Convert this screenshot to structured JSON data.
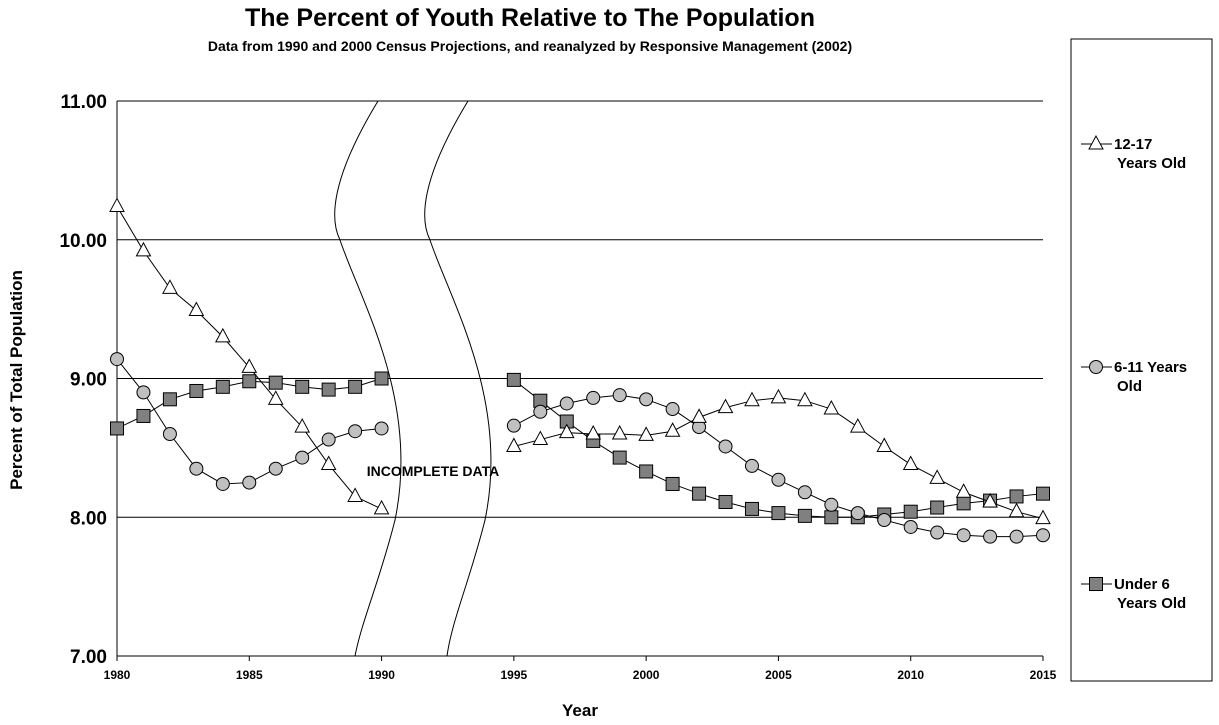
{
  "chart_data": {
    "type": "line",
    "title": "The Percent of Youth Relative to The Population",
    "subtitle": "Data from 1990 and 2000 Census Projections, and reanalyzed by Responsive Management (2002)",
    "xlabel": "Year",
    "ylabel": "Percent of Total Population",
    "xlim": [
      1980,
      2015
    ],
    "ylim": [
      7.0,
      11.0
    ],
    "x_ticks": [
      "1980",
      "1985",
      "1990",
      "1995",
      "2000",
      "2005",
      "2010",
      "2015"
    ],
    "y_ticks": [
      "7.00",
      "8.00",
      "9.00",
      "10.00",
      "11.00"
    ],
    "gridlines": "horizontal",
    "legend_position": "right",
    "annotation": "INCOMPLETE DATA",
    "series": [
      {
        "name": "12-17 Years Old",
        "marker": "triangle",
        "color": "#ffffff",
        "segments": [
          {
            "x": [
              1980,
              1981,
              1982,
              1983,
              1984,
              1985,
              1986,
              1987,
              1988,
              1989,
              1990
            ],
            "y": [
              10.24,
              9.92,
              9.65,
              9.49,
              9.3,
              9.08,
              8.85,
              8.65,
              8.38,
              8.15,
              8.06
            ]
          },
          {
            "x": [
              1995,
              1996,
              1997,
              1998,
              1999,
              2000,
              2001,
              2002,
              2003,
              2004,
              2005,
              2006,
              2007,
              2008,
              2009,
              2010,
              2011,
              2012,
              2013,
              2014,
              2015
            ],
            "y": [
              8.51,
              8.56,
              8.61,
              8.6,
              8.6,
              8.59,
              8.62,
              8.72,
              8.79,
              8.84,
              8.86,
              8.84,
              8.78,
              8.65,
              8.51,
              8.38,
              8.28,
              8.18,
              8.11,
              8.04,
              7.99
            ]
          }
        ]
      },
      {
        "name": "6-11 Years Old",
        "marker": "circle",
        "color": "#c0c0c0",
        "segments": [
          {
            "x": [
              1980,
              1981,
              1982,
              1983,
              1984,
              1985,
              1986,
              1987,
              1988,
              1989,
              1990
            ],
            "y": [
              9.14,
              8.9,
              8.6,
              8.35,
              8.24,
              8.25,
              8.35,
              8.43,
              8.56,
              8.62,
              8.64
            ]
          },
          {
            "x": [
              1995,
              1996,
              1997,
              1998,
              1999,
              2000,
              2001,
              2002,
              2003,
              2004,
              2005,
              2006,
              2007,
              2008,
              2009,
              2010,
              2011,
              2012,
              2013,
              2014,
              2015
            ],
            "y": [
              8.66,
              8.76,
              8.82,
              8.86,
              8.88,
              8.85,
              8.78,
              8.65,
              8.51,
              8.37,
              8.27,
              8.18,
              8.09,
              8.03,
              7.98,
              7.93,
              7.89,
              7.87,
              7.86,
              7.86,
              7.87
            ]
          }
        ]
      },
      {
        "name": "Under 6 Years Old",
        "marker": "square",
        "color": "#808080",
        "segments": [
          {
            "x": [
              1980,
              1981,
              1982,
              1983,
              1984,
              1985,
              1986,
              1987,
              1988,
              1989,
              1990
            ],
            "y": [
              8.64,
              8.73,
              8.85,
              8.91,
              8.94,
              8.98,
              8.97,
              8.94,
              8.92,
              8.94,
              9.0
            ]
          },
          {
            "x": [
              1995,
              1996,
              1997,
              1998,
              1999,
              2000,
              2001,
              2002,
              2003,
              2004,
              2005,
              2006,
              2007,
              2008,
              2009,
              2010,
              2011,
              2012,
              2013,
              2014,
              2015
            ],
            "y": [
              8.99,
              8.84,
              8.69,
              8.55,
              8.43,
              8.33,
              8.24,
              8.17,
              8.11,
              8.06,
              8.03,
              8.01,
              8.0,
              8.0,
              8.02,
              8.04,
              8.07,
              8.1,
              8.12,
              8.15,
              8.17
            ]
          }
        ]
      }
    ],
    "legend": [
      {
        "line1": "12-17",
        "line2": "Years Old"
      },
      {
        "line1": "6-11 Years",
        "line2": "Old"
      },
      {
        "line1": "Under 6",
        "line2": "Years Old"
      }
    ]
  }
}
